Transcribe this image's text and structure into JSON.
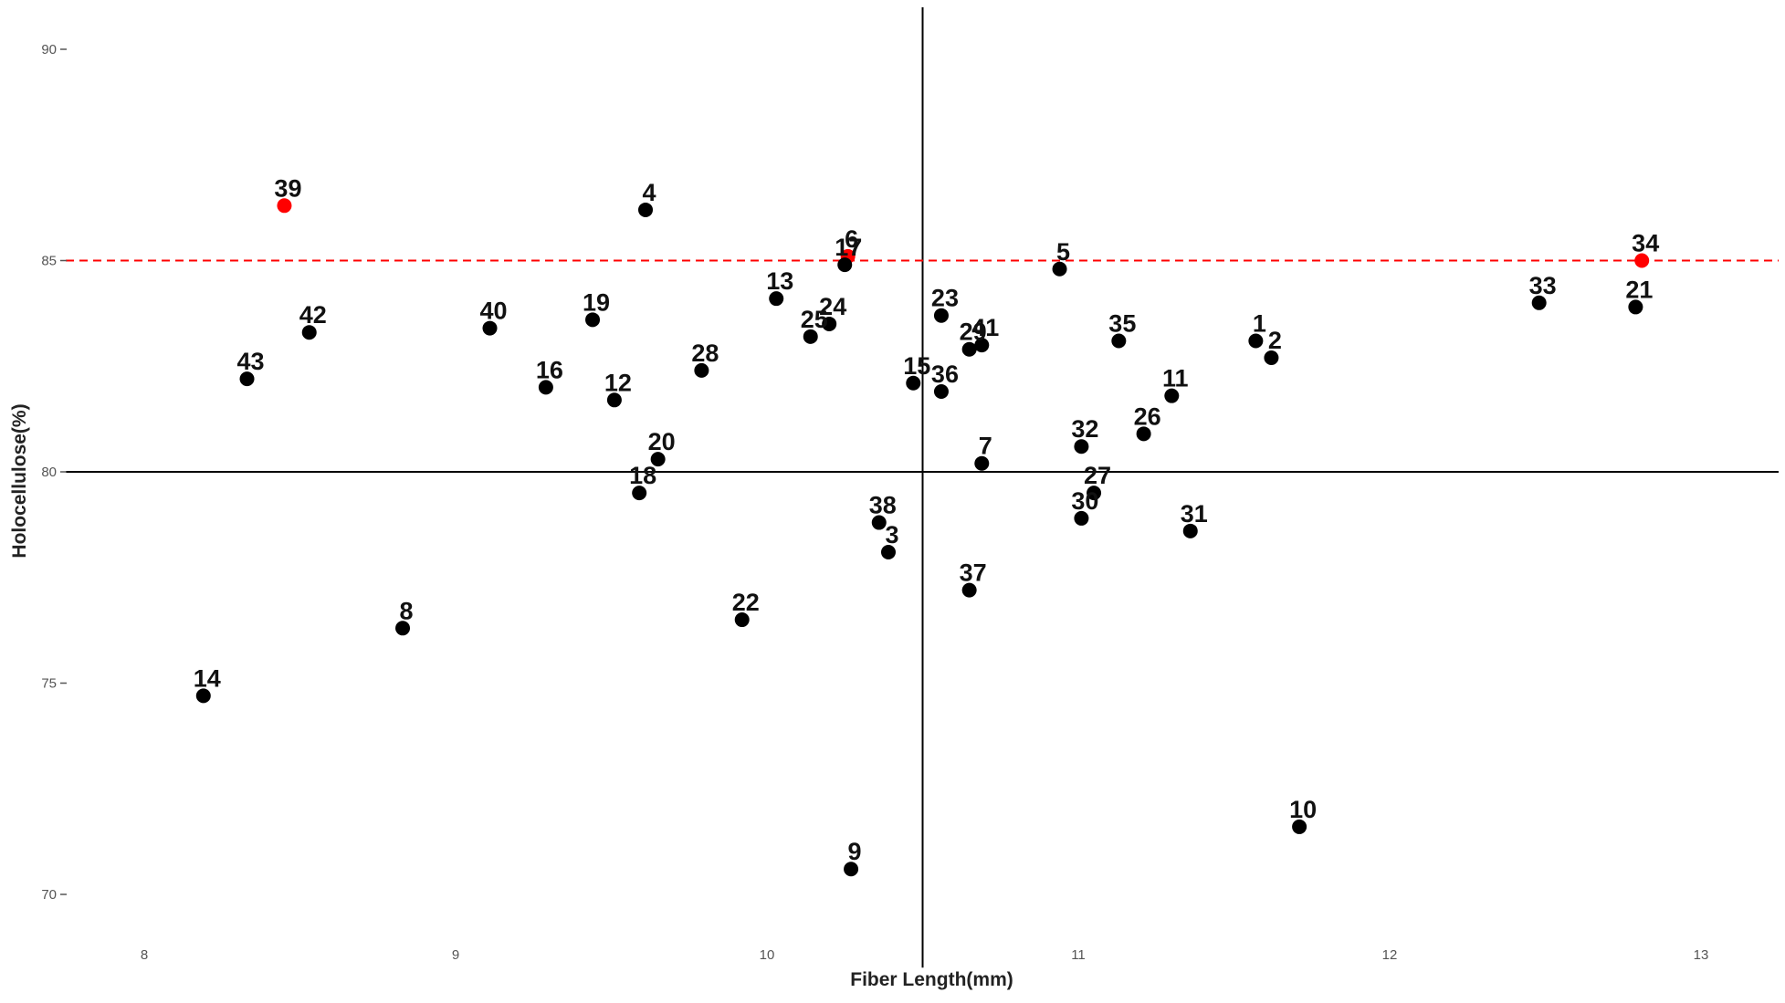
{
  "chart_data": {
    "type": "scatter",
    "xlabel": "Fiber Length(mm)",
    "ylabel": "Holocellulose(%)",
    "xlim": [
      7.75,
      13.25
    ],
    "ylim": [
      69,
      91
    ],
    "xticks": [
      8,
      9,
      10,
      11,
      12,
      13
    ],
    "yticks": [
      70,
      75,
      80,
      85,
      90
    ],
    "vline": 10.5,
    "hline": 80,
    "threshold": 85,
    "grid": false,
    "colors": {
      "normal": "#000000",
      "highlight": "#ff0000",
      "threshold": "#ff0000",
      "reference": "#000000"
    },
    "points": [
      {
        "label": "1",
        "x": 11.57,
        "y": 83.1,
        "highlight": false
      },
      {
        "label": "2",
        "x": 11.62,
        "y": 82.7,
        "highlight": false
      },
      {
        "label": "3",
        "x": 10.39,
        "y": 78.1,
        "highlight": false
      },
      {
        "label": "4",
        "x": 9.61,
        "y": 86.2,
        "highlight": false
      },
      {
        "label": "5",
        "x": 10.94,
        "y": 84.8,
        "highlight": false
      },
      {
        "label": "6",
        "x": 10.26,
        "y": 85.1,
        "highlight": true
      },
      {
        "label": "7",
        "x": 10.69,
        "y": 80.2,
        "highlight": false
      },
      {
        "label": "8",
        "x": 8.83,
        "y": 76.3,
        "highlight": false
      },
      {
        "label": "9",
        "x": 10.27,
        "y": 70.6,
        "highlight": false
      },
      {
        "label": "10",
        "x": 11.71,
        "y": 71.6,
        "highlight": false
      },
      {
        "label": "11",
        "x": 11.3,
        "y": 81.8,
        "highlight": false
      },
      {
        "label": "12",
        "x": 9.51,
        "y": 81.7,
        "highlight": false
      },
      {
        "label": "13",
        "x": 10.03,
        "y": 84.1,
        "highlight": false
      },
      {
        "label": "14",
        "x": 8.19,
        "y": 74.7,
        "highlight": false
      },
      {
        "label": "15",
        "x": 10.47,
        "y": 82.1,
        "highlight": false
      },
      {
        "label": "16",
        "x": 9.29,
        "y": 82.0,
        "highlight": false
      },
      {
        "label": "17",
        "x": 10.25,
        "y": 84.9,
        "highlight": false
      },
      {
        "label": "18",
        "x": 9.59,
        "y": 79.5,
        "highlight": false
      },
      {
        "label": "19",
        "x": 9.44,
        "y": 83.6,
        "highlight": false
      },
      {
        "label": "20",
        "x": 9.65,
        "y": 80.3,
        "highlight": false
      },
      {
        "label": "21",
        "x": 12.79,
        "y": 83.9,
        "highlight": false
      },
      {
        "label": "22",
        "x": 9.92,
        "y": 76.5,
        "highlight": false
      },
      {
        "label": "23",
        "x": 10.56,
        "y": 83.7,
        "highlight": false
      },
      {
        "label": "24",
        "x": 10.2,
        "y": 83.5,
        "highlight": false
      },
      {
        "label": "25",
        "x": 10.14,
        "y": 83.2,
        "highlight": false
      },
      {
        "label": "26",
        "x": 11.21,
        "y": 80.9,
        "highlight": false
      },
      {
        "label": "27",
        "x": 11.05,
        "y": 79.5,
        "highlight": false
      },
      {
        "label": "28",
        "x": 9.79,
        "y": 82.4,
        "highlight": false
      },
      {
        "label": "29",
        "x": 10.65,
        "y": 82.9,
        "highlight": false
      },
      {
        "label": "30",
        "x": 11.01,
        "y": 78.9,
        "highlight": false
      },
      {
        "label": "31",
        "x": 11.36,
        "y": 78.6,
        "highlight": false
      },
      {
        "label": "32",
        "x": 11.01,
        "y": 80.6,
        "highlight": false
      },
      {
        "label": "33",
        "x": 12.48,
        "y": 84.0,
        "highlight": false
      },
      {
        "label": "34",
        "x": 12.81,
        "y": 85.0,
        "highlight": true
      },
      {
        "label": "35",
        "x": 11.13,
        "y": 83.1,
        "highlight": false
      },
      {
        "label": "36",
        "x": 10.56,
        "y": 81.9,
        "highlight": false
      },
      {
        "label": "37",
        "x": 10.65,
        "y": 77.2,
        "highlight": false
      },
      {
        "label": "38",
        "x": 10.36,
        "y": 78.8,
        "highlight": false
      },
      {
        "label": "39",
        "x": 8.45,
        "y": 86.3,
        "highlight": true
      },
      {
        "label": "40",
        "x": 9.11,
        "y": 83.4,
        "highlight": false
      },
      {
        "label": "41",
        "x": 10.69,
        "y": 83.0,
        "highlight": false
      },
      {
        "label": "42",
        "x": 8.53,
        "y": 83.3,
        "highlight": false
      },
      {
        "label": "43",
        "x": 8.33,
        "y": 82.2,
        "highlight": false
      }
    ]
  }
}
